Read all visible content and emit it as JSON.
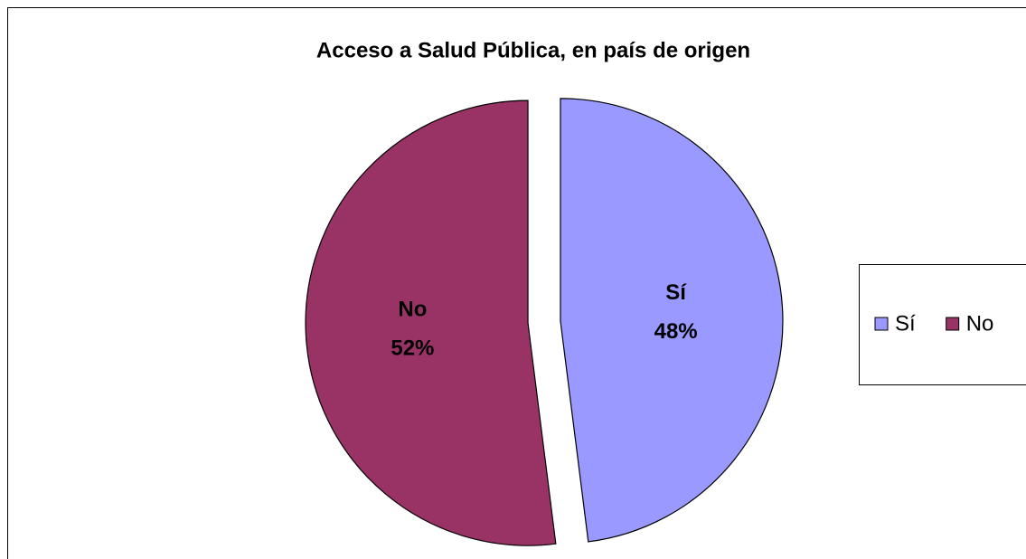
{
  "chart_data": {
    "type": "pie",
    "title": "Acceso a Salud Pública, en país de origen",
    "categories": [
      "Sí",
      "No"
    ],
    "values": [
      48,
      52
    ],
    "value_labels": [
      "48%",
      "52%"
    ],
    "colors": [
      "#9999ff",
      "#993366"
    ],
    "legend": "right"
  }
}
